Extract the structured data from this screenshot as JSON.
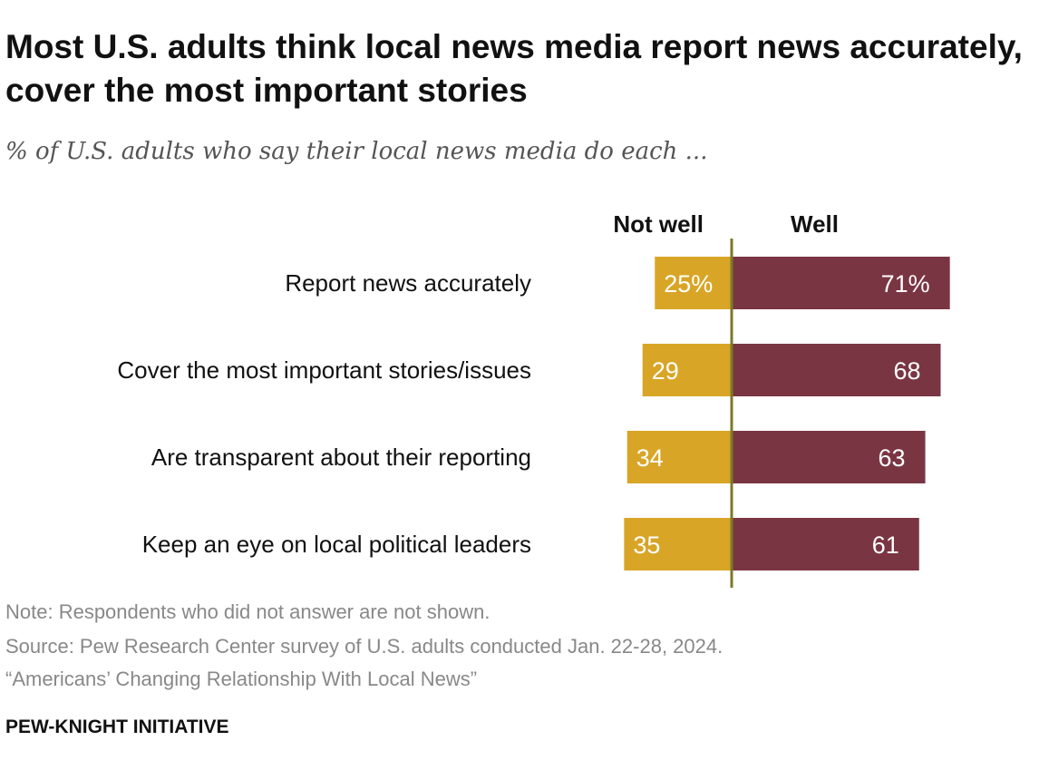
{
  "chart_data": {
    "type": "bar",
    "orientation": "horizontal-diverging",
    "title": "Most U.S. adults think local news media report news accurately, cover the most important stories",
    "subtitle": "% of U.S. adults who say their local news media do each ...",
    "categories": [
      "Report news accurately",
      "Cover the most important stories/issues",
      "Are transparent about their reporting",
      "Keep an eye on local political leaders"
    ],
    "series": [
      {
        "name": "Not well",
        "values": [
          25,
          29,
          34,
          35
        ],
        "labels": [
          "25%",
          "29",
          "34",
          "35"
        ],
        "color": "#D8A526"
      },
      {
        "name": "Well",
        "values": [
          71,
          68,
          63,
          61
        ],
        "labels": [
          "71%",
          "68",
          "63",
          "61"
        ],
        "color": "#7A3543"
      }
    ],
    "axis_line_color": "#7A7A2A"
  },
  "notes": [
    "Note: Respondents who did not answer are not shown.",
    "Source: Pew Research Center survey of U.S. adults conducted Jan. 22-28, 2024.",
    "“Americans’ Changing Relationship With Local News”"
  ],
  "brand": "PEW-KNIGHT INITIATIVE"
}
